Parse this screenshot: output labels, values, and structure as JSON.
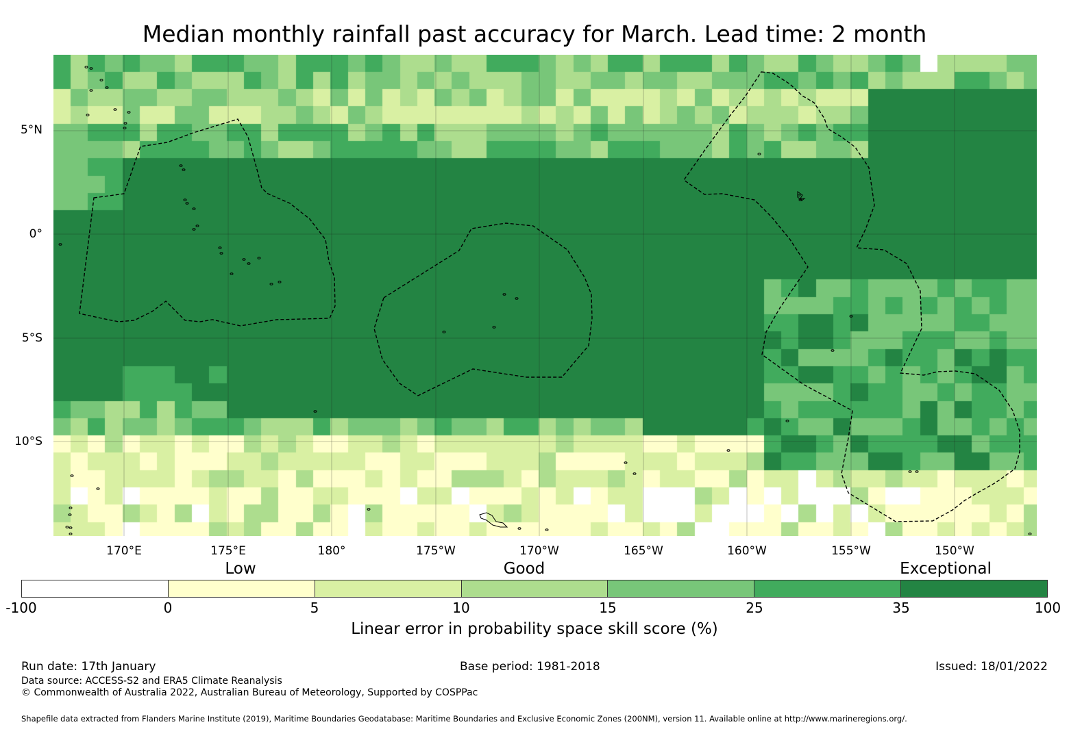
{
  "title": "Median monthly rainfall past accuracy for March. Lead time: 2 month",
  "map": {
    "lat_labels": [
      "5°N",
      "0°",
      "5°S",
      "10°S"
    ],
    "lon_labels": [
      "170°E",
      "175°E",
      "180°",
      "175°W",
      "170°W",
      "165°W",
      "160°W",
      "155°W",
      "150°W"
    ],
    "lon_range": [
      166.6,
      -146.0
    ],
    "lat_range": [
      -14.5,
      8.7
    ],
    "grid_color": "#1a1a1a",
    "eez_line_style": "dashed",
    "coastline_color": "#000000"
  },
  "legend": {
    "categories": [
      "Low",
      "Good",
      "Exceptional"
    ],
    "bins": [
      {
        "from": -100,
        "to": 0,
        "color": "#ffffff"
      },
      {
        "from": 0,
        "to": 5,
        "color": "#ffffcc"
      },
      {
        "from": 5,
        "to": 10,
        "color": "#d9f0a3"
      },
      {
        "from": 10,
        "to": 15,
        "color": "#addd8e"
      },
      {
        "from": 15,
        "to": 25,
        "color": "#78c679"
      },
      {
        "from": 25,
        "to": 35,
        "color": "#41ab5d"
      },
      {
        "from": 35,
        "to": 100,
        "color": "#238443"
      }
    ],
    "ticks": [
      "-100",
      "0",
      "5",
      "10",
      "15",
      "25",
      "35",
      "100"
    ],
    "label": "Linear error in probability space skill score (%)"
  },
  "footer": {
    "run_date": "Run date: 17th January",
    "base_period": "Base period: 1981-2018",
    "issued": "Issued: 18/01/2022",
    "data_source": "Data source: ACCESS-S2 and ERA5 Climate Reanalysis",
    "copyright": "© Commonwealth of Australia 2022, Australian Bureau of Meteorology, Supported by COSPPac",
    "shapefile_note": "Shapefile data extracted from Flanders Marine Institute (2019), Maritime Boundaries Geodatabase: Maritime Boundaries and Exclusive Economic Zones (200NM), version 11. Available online at http://www.marineregions.org/."
  }
}
